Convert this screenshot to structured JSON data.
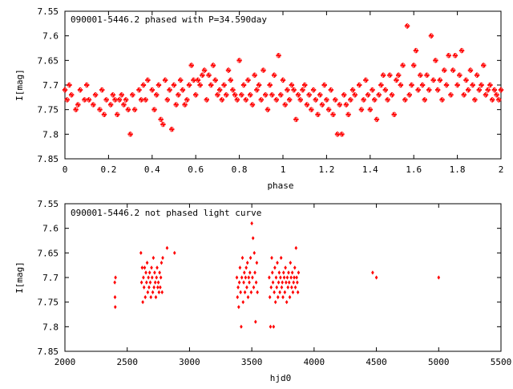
{
  "colors": {
    "points": "#ff0000",
    "frame": "#000000",
    "background": "#ffffff"
  },
  "chart_data": [
    {
      "type": "scatter",
      "title": "090001-5446.2 phased with P=34.590day",
      "xlabel": "phase",
      "ylabel": "I[mag]",
      "xlim": [
        0,
        2
      ],
      "ylim": [
        7.55,
        7.85
      ],
      "y_inverted": true,
      "grid": false,
      "marker": "star",
      "x_ticks": [
        "0",
        "0.2",
        "0.4",
        "0.6",
        "0.8",
        "1",
        "1.2",
        "1.4",
        "1.6",
        "1.8",
        "2"
      ],
      "y_ticks": [
        "7.55",
        "7.6",
        "7.65",
        "7.7",
        "7.75",
        "7.8",
        "7.85"
      ],
      "points": [
        [
          0.0,
          7.71
        ],
        [
          0.01,
          7.73
        ],
        [
          0.02,
          7.7
        ],
        [
          0.03,
          7.72
        ],
        [
          0.05,
          7.75
        ],
        [
          0.06,
          7.74
        ],
        [
          0.07,
          7.71
        ],
        [
          0.09,
          7.73
        ],
        [
          0.1,
          7.7
        ],
        [
          0.11,
          7.73
        ],
        [
          0.13,
          7.74
        ],
        [
          0.14,
          7.72
        ],
        [
          0.16,
          7.75
        ],
        [
          0.17,
          7.71
        ],
        [
          0.18,
          7.76
        ],
        [
          0.19,
          7.73
        ],
        [
          0.21,
          7.74
        ],
        [
          0.22,
          7.72
        ],
        [
          0.23,
          7.73
        ],
        [
          0.24,
          7.76
        ],
        [
          0.25,
          7.73
        ],
        [
          0.26,
          7.72
        ],
        [
          0.27,
          7.74
        ],
        [
          0.28,
          7.73
        ],
        [
          0.29,
          7.75
        ],
        [
          0.3,
          7.8
        ],
        [
          0.31,
          7.72
        ],
        [
          0.32,
          7.75
        ],
        [
          0.34,
          7.71
        ],
        [
          0.35,
          7.73
        ],
        [
          0.36,
          7.7
        ],
        [
          0.37,
          7.73
        ],
        [
          0.38,
          7.69
        ],
        [
          0.4,
          7.71
        ],
        [
          0.41,
          7.75
        ],
        [
          0.42,
          7.72
        ],
        [
          0.43,
          7.7
        ],
        [
          0.44,
          7.77
        ],
        [
          0.45,
          7.78
        ],
        [
          0.46,
          7.69
        ],
        [
          0.47,
          7.73
        ],
        [
          0.48,
          7.71
        ],
        [
          0.49,
          7.79
        ],
        [
          0.5,
          7.7
        ],
        [
          0.51,
          7.74
        ],
        [
          0.52,
          7.72
        ],
        [
          0.53,
          7.69
        ],
        [
          0.54,
          7.71
        ],
        [
          0.55,
          7.74
        ],
        [
          0.56,
          7.73
        ],
        [
          0.57,
          7.7
        ],
        [
          0.58,
          7.66
        ],
        [
          0.59,
          7.69
        ],
        [
          0.6,
          7.72
        ],
        [
          0.61,
          7.69
        ],
        [
          0.62,
          7.7
        ],
        [
          0.63,
          7.68
        ],
        [
          0.64,
          7.67
        ],
        [
          0.65,
          7.73
        ],
        [
          0.66,
          7.68
        ],
        [
          0.67,
          7.7
        ],
        [
          0.68,
          7.66
        ],
        [
          0.69,
          7.69
        ],
        [
          0.7,
          7.72
        ],
        [
          0.71,
          7.71
        ],
        [
          0.72,
          7.73
        ],
        [
          0.73,
          7.7
        ],
        [
          0.74,
          7.72
        ],
        [
          0.75,
          7.67
        ],
        [
          0.76,
          7.69
        ],
        [
          0.77,
          7.71
        ],
        [
          0.78,
          7.72
        ],
        [
          0.79,
          7.73
        ],
        [
          0.8,
          7.65
        ],
        [
          0.81,
          7.72
        ],
        [
          0.82,
          7.7
        ],
        [
          0.83,
          7.73
        ],
        [
          0.84,
          7.69
        ],
        [
          0.85,
          7.72
        ],
        [
          0.86,
          7.74
        ],
        [
          0.87,
          7.68
        ],
        [
          0.88,
          7.71
        ],
        [
          0.89,
          7.7
        ],
        [
          0.9,
          7.73
        ],
        [
          0.91,
          7.67
        ],
        [
          0.92,
          7.72
        ],
        [
          0.93,
          7.75
        ],
        [
          0.94,
          7.7
        ],
        [
          0.95,
          7.72
        ],
        [
          0.96,
          7.68
        ],
        [
          0.97,
          7.73
        ],
        [
          0.98,
          7.64
        ],
        [
          0.99,
          7.72
        ],
        [
          1.0,
          7.69
        ],
        [
          1.01,
          7.74
        ],
        [
          1.02,
          7.71
        ],
        [
          1.03,
          7.73
        ],
        [
          1.04,
          7.7
        ],
        [
          1.05,
          7.71
        ],
        [
          1.06,
          7.77
        ],
        [
          1.07,
          7.72
        ],
        [
          1.08,
          7.73
        ],
        [
          1.09,
          7.71
        ],
        [
          1.1,
          7.7
        ],
        [
          1.11,
          7.74
        ],
        [
          1.12,
          7.72
        ],
        [
          1.13,
          7.75
        ],
        [
          1.14,
          7.71
        ],
        [
          1.15,
          7.73
        ],
        [
          1.16,
          7.76
        ],
        [
          1.17,
          7.72
        ],
        [
          1.18,
          7.74
        ],
        [
          1.19,
          7.7
        ],
        [
          1.2,
          7.73
        ],
        [
          1.21,
          7.75
        ],
        [
          1.22,
          7.71
        ],
        [
          1.23,
          7.76
        ],
        [
          1.24,
          7.73
        ],
        [
          1.25,
          7.8
        ],
        [
          1.26,
          7.74
        ],
        [
          1.27,
          7.8
        ],
        [
          1.28,
          7.72
        ],
        [
          1.29,
          7.74
        ],
        [
          1.3,
          7.76
        ],
        [
          1.31,
          7.73
        ],
        [
          1.32,
          7.71
        ],
        [
          1.33,
          7.72
        ],
        [
          1.35,
          7.7
        ],
        [
          1.36,
          7.75
        ],
        [
          1.37,
          7.73
        ],
        [
          1.38,
          7.69
        ],
        [
          1.39,
          7.72
        ],
        [
          1.4,
          7.75
        ],
        [
          1.41,
          7.71
        ],
        [
          1.42,
          7.73
        ],
        [
          1.43,
          7.77
        ],
        [
          1.44,
          7.72
        ],
        [
          1.45,
          7.7
        ],
        [
          1.46,
          7.68
        ],
        [
          1.47,
          7.71
        ],
        [
          1.48,
          7.73
        ],
        [
          1.49,
          7.68
        ],
        [
          1.5,
          7.72
        ],
        [
          1.51,
          7.76
        ],
        [
          1.52,
          7.69
        ],
        [
          1.53,
          7.68
        ],
        [
          1.54,
          7.7
        ],
        [
          1.55,
          7.66
        ],
        [
          1.56,
          7.73
        ],
        [
          1.57,
          7.58
        ],
        [
          1.58,
          7.72
        ],
        [
          1.59,
          7.7
        ],
        [
          1.6,
          7.66
        ],
        [
          1.61,
          7.63
        ],
        [
          1.62,
          7.71
        ],
        [
          1.63,
          7.68
        ],
        [
          1.64,
          7.7
        ],
        [
          1.65,
          7.73
        ],
        [
          1.66,
          7.68
        ],
        [
          1.67,
          7.71
        ],
        [
          1.68,
          7.6
        ],
        [
          1.69,
          7.69
        ],
        [
          1.7,
          7.65
        ],
        [
          1.71,
          7.71
        ],
        [
          1.72,
          7.69
        ],
        [
          1.73,
          7.73
        ],
        [
          1.74,
          7.67
        ],
        [
          1.75,
          7.7
        ],
        [
          1.76,
          7.64
        ],
        [
          1.77,
          7.72
        ],
        [
          1.78,
          7.67
        ],
        [
          1.79,
          7.64
        ],
        [
          1.8,
          7.7
        ],
        [
          1.81,
          7.68
        ],
        [
          1.82,
          7.63
        ],
        [
          1.83,
          7.72
        ],
        [
          1.84,
          7.69
        ],
        [
          1.85,
          7.71
        ],
        [
          1.86,
          7.67
        ],
        [
          1.87,
          7.7
        ],
        [
          1.88,
          7.73
        ],
        [
          1.89,
          7.68
        ],
        [
          1.9,
          7.71
        ],
        [
          1.91,
          7.7
        ],
        [
          1.92,
          7.66
        ],
        [
          1.93,
          7.72
        ],
        [
          1.94,
          7.71
        ],
        [
          1.95,
          7.7
        ],
        [
          1.96,
          7.73
        ],
        [
          1.97,
          7.71
        ],
        [
          1.98,
          7.72
        ],
        [
          1.99,
          7.73
        ],
        [
          2.0,
          7.71
        ]
      ]
    },
    {
      "type": "scatter",
      "title": "090001-5446.2 not phased light curve",
      "xlabel": "hjd0",
      "ylabel": "I[mag]",
      "xlim": [
        2000,
        5500
      ],
      "ylim": [
        7.55,
        7.85
      ],
      "y_inverted": true,
      "grid": false,
      "marker": "diamond",
      "x_ticks": [
        "2000",
        "2500",
        "3000",
        "3500",
        "4000",
        "4500",
        "5000",
        "5500"
      ],
      "y_ticks": [
        "7.55",
        "7.6",
        "7.65",
        "7.7",
        "7.75",
        "7.8",
        "7.85"
      ],
      "points": [
        [
          2400,
          7.71
        ],
        [
          2402,
          7.74
        ],
        [
          2404,
          7.76
        ],
        [
          2406,
          7.7
        ],
        [
          2610,
          7.65
        ],
        [
          2615,
          7.71
        ],
        [
          2620,
          7.68
        ],
        [
          2625,
          7.75
        ],
        [
          2630,
          7.7
        ],
        [
          2635,
          7.72
        ],
        [
          2640,
          7.68
        ],
        [
          2645,
          7.74
        ],
        [
          2650,
          7.69
        ],
        [
          2655,
          7.71
        ],
        [
          2660,
          7.67
        ],
        [
          2665,
          7.73
        ],
        [
          2670,
          7.7
        ],
        [
          2675,
          7.72
        ],
        [
          2680,
          7.69
        ],
        [
          2685,
          7.71
        ],
        [
          2690,
          7.74
        ],
        [
          2695,
          7.68
        ],
        [
          2700,
          7.7
        ],
        [
          2705,
          7.73
        ],
        [
          2710,
          7.66
        ],
        [
          2715,
          7.72
        ],
        [
          2720,
          7.69
        ],
        [
          2725,
          7.71
        ],
        [
          2730,
          7.74
        ],
        [
          2735,
          7.7
        ],
        [
          2740,
          7.68
        ],
        [
          2745,
          7.72
        ],
        [
          2750,
          7.71
        ],
        [
          2755,
          7.73
        ],
        [
          2760,
          7.69
        ],
        [
          2765,
          7.72
        ],
        [
          2770,
          7.7
        ],
        [
          2775,
          7.67
        ],
        [
          2780,
          7.73
        ],
        [
          2785,
          7.66
        ],
        [
          2820,
          7.64
        ],
        [
          2880,
          7.65
        ],
        [
          3380,
          7.7
        ],
        [
          3385,
          7.74
        ],
        [
          3390,
          7.72
        ],
        [
          3395,
          7.76
        ],
        [
          3400,
          7.71
        ],
        [
          3405,
          7.68
        ],
        [
          3410,
          7.73
        ],
        [
          3415,
          7.8
        ],
        [
          3420,
          7.7
        ],
        [
          3425,
          7.66
        ],
        [
          3430,
          7.75
        ],
        [
          3435,
          7.71
        ],
        [
          3440,
          7.69
        ],
        [
          3445,
          7.73
        ],
        [
          3450,
          7.7
        ],
        [
          3455,
          7.68
        ],
        [
          3460,
          7.72
        ],
        [
          3465,
          7.67
        ],
        [
          3470,
          7.74
        ],
        [
          3475,
          7.7
        ],
        [
          3480,
          7.71
        ],
        [
          3485,
          7.69
        ],
        [
          3490,
          7.66
        ],
        [
          3495,
          7.73
        ],
        [
          3500,
          7.59
        ],
        [
          3505,
          7.7
        ],
        [
          3510,
          7.62
        ],
        [
          3515,
          7.72
        ],
        [
          3520,
          7.65
        ],
        [
          3525,
          7.69
        ],
        [
          3530,
          7.79
        ],
        [
          3535,
          7.71
        ],
        [
          3540,
          7.67
        ],
        [
          3545,
          7.73
        ],
        [
          3640,
          7.7
        ],
        [
          3645,
          7.74
        ],
        [
          3650,
          7.8
        ],
        [
          3655,
          7.72
        ],
        [
          3660,
          7.66
        ],
        [
          3665,
          7.69
        ],
        [
          3670,
          7.71
        ],
        [
          3675,
          7.8
        ],
        [
          3680,
          7.73
        ],
        [
          3685,
          7.68
        ],
        [
          3690,
          7.75
        ],
        [
          3695,
          7.7
        ],
        [
          3700,
          7.72
        ],
        [
          3705,
          7.67
        ],
        [
          3710,
          7.74
        ],
        [
          3715,
          7.71
        ],
        [
          3720,
          7.69
        ],
        [
          3725,
          7.73
        ],
        [
          3730,
          7.7
        ],
        [
          3735,
          7.66
        ],
        [
          3740,
          7.72
        ],
        [
          3745,
          7.71
        ],
        [
          3750,
          7.74
        ],
        [
          3755,
          7.69
        ],
        [
          3760,
          7.7
        ],
        [
          3765,
          7.73
        ],
        [
          3770,
          7.68
        ],
        [
          3775,
          7.71
        ],
        [
          3780,
          7.75
        ],
        [
          3785,
          7.7
        ],
        [
          3790,
          7.72
        ],
        [
          3795,
          7.69
        ],
        [
          3800,
          7.71
        ],
        [
          3805,
          7.74
        ],
        [
          3810,
          7.67
        ],
        [
          3815,
          7.7
        ],
        [
          3820,
          7.72
        ],
        [
          3825,
          7.69
        ],
        [
          3830,
          7.73
        ],
        [
          3835,
          7.71
        ],
        [
          3840,
          7.7
        ],
        [
          3845,
          7.68
        ],
        [
          3850,
          7.72
        ],
        [
          3855,
          7.64
        ],
        [
          3860,
          7.7
        ],
        [
          3865,
          7.71
        ],
        [
          3870,
          7.73
        ],
        [
          3875,
          7.69
        ],
        [
          4470,
          7.69
        ],
        [
          4500,
          7.7
        ],
        [
          5000,
          7.7
        ]
      ]
    }
  ]
}
